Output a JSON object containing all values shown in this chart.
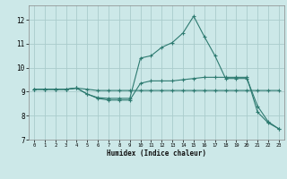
{
  "background_color": "#cce8e8",
  "grid_color": "#aacccc",
  "line_color": "#2d7a70",
  "xlabel": "Humidex (Indice chaleur)",
  "xlim": [
    -0.5,
    23.5
  ],
  "ylim": [
    7.0,
    12.6
  ],
  "yticks": [
    7,
    8,
    9,
    10,
    11,
    12
  ],
  "xticks": [
    0,
    1,
    2,
    3,
    4,
    5,
    6,
    7,
    8,
    9,
    10,
    11,
    12,
    13,
    14,
    15,
    16,
    17,
    18,
    19,
    20,
    21,
    22,
    23
  ],
  "line1_x": [
    0,
    1,
    2,
    3,
    4,
    5,
    6,
    7,
    8,
    9,
    10,
    11,
    12,
    13,
    14,
    15,
    16,
    17,
    18,
    19,
    20,
    21,
    22,
    23
  ],
  "line1_y": [
    9.1,
    9.1,
    9.1,
    9.1,
    9.15,
    9.1,
    9.05,
    9.05,
    9.05,
    9.05,
    9.05,
    9.05,
    9.05,
    9.05,
    9.05,
    9.05,
    9.05,
    9.05,
    9.05,
    9.05,
    9.05,
    9.05,
    9.05,
    9.05
  ],
  "line2_x": [
    0,
    1,
    2,
    3,
    4,
    5,
    6,
    7,
    8,
    9,
    10,
    11,
    12,
    13,
    14,
    15,
    16,
    17,
    18,
    19,
    20,
    21,
    22,
    23
  ],
  "line2_y": [
    9.1,
    9.1,
    9.1,
    9.1,
    9.15,
    8.9,
    8.75,
    8.72,
    8.72,
    8.72,
    10.4,
    10.5,
    10.85,
    11.05,
    11.45,
    12.15,
    11.3,
    10.5,
    9.55,
    9.55,
    9.55,
    8.4,
    7.75,
    7.45
  ],
  "line3_x": [
    0,
    1,
    2,
    3,
    4,
    5,
    6,
    7,
    8,
    9,
    10,
    11,
    12,
    13,
    14,
    15,
    16,
    17,
    18,
    19,
    20,
    21,
    22,
    23
  ],
  "line3_y": [
    9.1,
    9.1,
    9.1,
    9.1,
    9.15,
    8.9,
    8.72,
    8.65,
    8.65,
    8.65,
    9.35,
    9.45,
    9.45,
    9.45,
    9.5,
    9.55,
    9.6,
    9.6,
    9.6,
    9.6,
    9.6,
    8.15,
    7.7,
    7.45
  ]
}
